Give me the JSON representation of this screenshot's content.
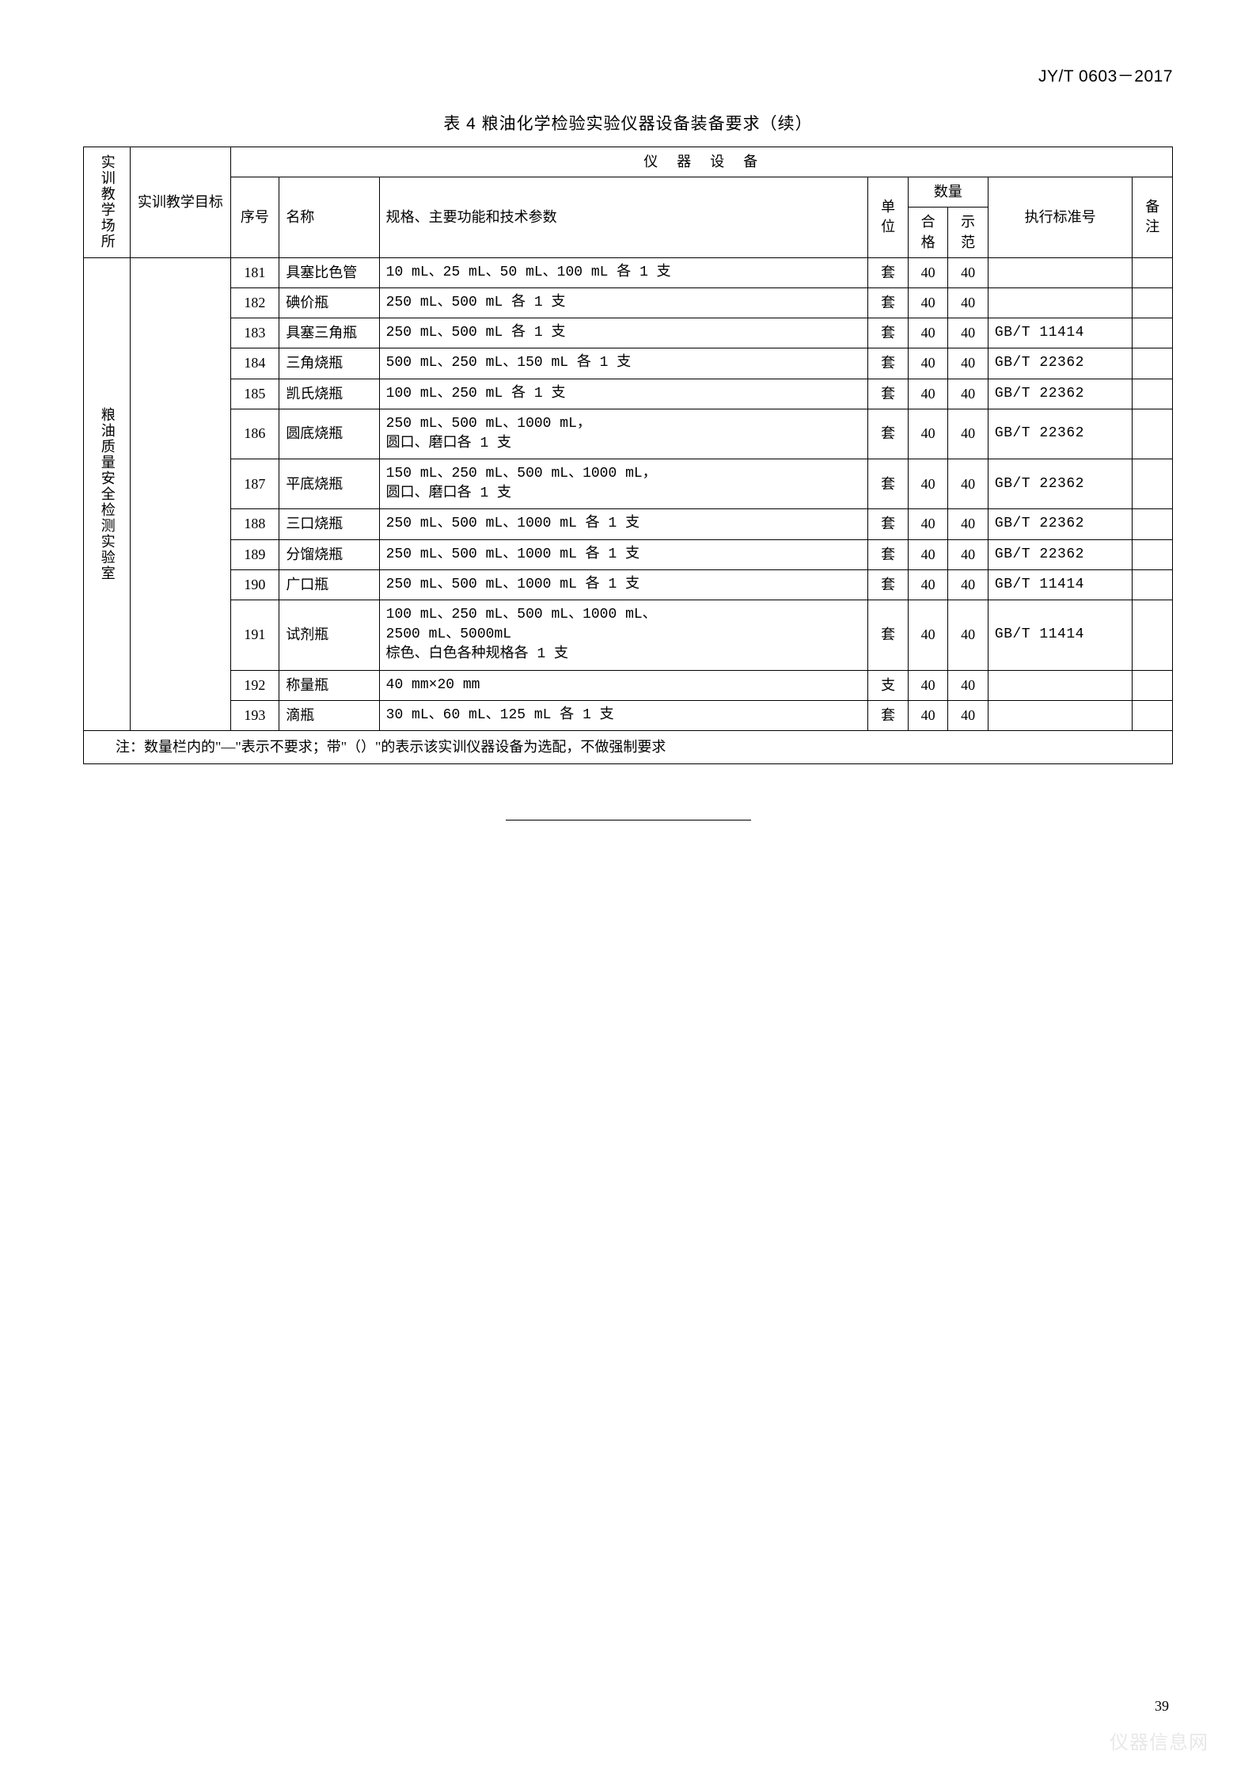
{
  "doc_code": "JY/T 0603－2017",
  "table_title_bold": "表 4  粮油化学检验实验仪器设备装备要求",
  "table_title_cont": "（续）",
  "headers": {
    "col1": "实训教学场所",
    "col2": "实训教学目标",
    "equip": "仪器设备",
    "seq": "序号",
    "name": "名称",
    "spec": "规格、主要功能和技术参数",
    "unit": "单位",
    "qty": "数量",
    "qty_hg": "合格",
    "qty_sf": "示范",
    "std": "执行标准号",
    "note": "备注"
  },
  "lab_name": "粮油质量安全检测实验室",
  "rows": [
    {
      "seq": "181",
      "name": "具塞比色管",
      "spec": "10 mL、25 mL、50 mL、100 mL 各 1 支",
      "unit": "套",
      "hg": "40",
      "sf": "40",
      "std": "",
      "note": ""
    },
    {
      "seq": "182",
      "name": "碘价瓶",
      "spec": "250 mL、500 mL 各 1 支",
      "unit": "套",
      "hg": "40",
      "sf": "40",
      "std": "",
      "note": ""
    },
    {
      "seq": "183",
      "name": "具塞三角瓶",
      "spec": "250 mL、500 mL 各 1 支",
      "unit": "套",
      "hg": "40",
      "sf": "40",
      "std": "GB/T 11414",
      "note": ""
    },
    {
      "seq": "184",
      "name": "三角烧瓶",
      "spec": "500 mL、250 mL、150 mL 各 1 支",
      "unit": "套",
      "hg": "40",
      "sf": "40",
      "std": "GB/T 22362",
      "note": ""
    },
    {
      "seq": "185",
      "name": "凯氏烧瓶",
      "spec": "100 mL、250 mL 各 1 支",
      "unit": "套",
      "hg": "40",
      "sf": "40",
      "std": "GB/T 22362",
      "note": ""
    },
    {
      "seq": "186",
      "name": "圆底烧瓶",
      "spec": "250 mL、500 mL、1000 mL，\n圆口、磨口各 1 支",
      "unit": "套",
      "hg": "40",
      "sf": "40",
      "std": "GB/T 22362",
      "note": ""
    },
    {
      "seq": "187",
      "name": "平底烧瓶",
      "spec": "150 mL、250 mL、500 mL、1000 mL，\n圆口、磨口各 1 支",
      "unit": "套",
      "hg": "40",
      "sf": "40",
      "std": "GB/T 22362",
      "note": ""
    },
    {
      "seq": "188",
      "name": "三口烧瓶",
      "spec": "250 mL、500 mL、1000 mL 各 1 支",
      "unit": "套",
      "hg": "40",
      "sf": "40",
      "std": "GB/T 22362",
      "note": ""
    },
    {
      "seq": "189",
      "name": "分馏烧瓶",
      "spec": "250 mL、500 mL、1000 mL 各 1 支",
      "unit": "套",
      "hg": "40",
      "sf": "40",
      "std": "GB/T 22362",
      "note": ""
    },
    {
      "seq": "190",
      "name": "广口瓶",
      "spec": "250 mL、500 mL、1000 mL 各 1 支",
      "unit": "套",
      "hg": "40",
      "sf": "40",
      "std": "GB/T 11414",
      "note": ""
    },
    {
      "seq": "191",
      "name": "试剂瓶",
      "spec": "100 mL、250 mL、500 mL、1000 mL、\n2500 mL、5000mL\n棕色、白色各种规格各 1 支",
      "unit": "套",
      "hg": "40",
      "sf": "40",
      "std": "GB/T 11414",
      "note": ""
    },
    {
      "seq": "192",
      "name": "称量瓶",
      "spec": "40 mm×20 mm",
      "unit": "支",
      "hg": "40",
      "sf": "40",
      "std": "",
      "note": ""
    },
    {
      "seq": "193",
      "name": "滴瓶",
      "spec": "30 mL、60 mL、125 mL 各 1 支",
      "unit": "套",
      "hg": "40",
      "sf": "40",
      "std": "",
      "note": ""
    }
  ],
  "footer_note": "注：数量栏内的\"—\"表示不要求；带\"（）\"的表示该实训仪器设备为选配，不做强制要求",
  "page_num": "39",
  "watermark": "仪器信息网"
}
